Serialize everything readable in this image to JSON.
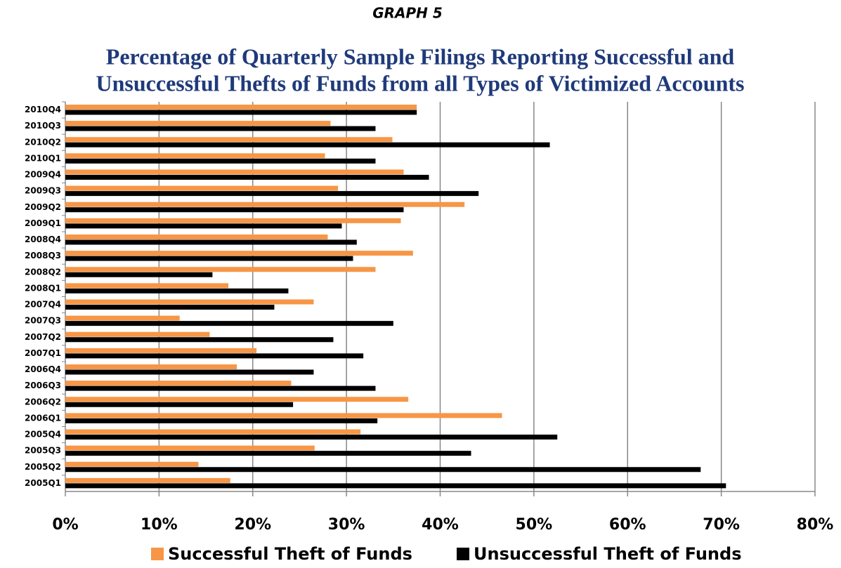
{
  "chart_data": {
    "type": "hbar",
    "pretitle": "GRAPH 5",
    "title": [
      "Percentage of Quarterly Sample Filings Reporting Successful and",
      "Unsuccessful Thefts of Funds from all Types of Victimized Accounts"
    ],
    "categories": [
      "2010Q4",
      "2010Q3",
      "2010Q2",
      "2010Q1",
      "2009Q4",
      "2009Q3",
      "2009Q2",
      "2009Q1",
      "2008Q4",
      "2008Q3",
      "2008Q2",
      "2008Q1",
      "2007Q4",
      "2007Q3",
      "2007Q2",
      "2007Q1",
      "2006Q4",
      "2006Q3",
      "2006Q2",
      "2006Q1",
      "2005Q4",
      "2005Q3",
      "2005Q2",
      "2005Q1"
    ],
    "series": [
      {
        "name": "Successful Theft of Funds",
        "color": "#f79646",
        "values": [
          37.5,
          28.3,
          34.9,
          27.7,
          36.1,
          29.1,
          42.6,
          35.8,
          28.0,
          37.1,
          33.1,
          17.4,
          26.5,
          12.2,
          15.4,
          20.4,
          18.3,
          24.1,
          36.6,
          46.6,
          31.5,
          26.6,
          14.2,
          17.6
        ]
      },
      {
        "name": "Unsuccessful Theft of Funds",
        "color": "#000000",
        "values": [
          37.5,
          33.1,
          51.7,
          33.1,
          38.8,
          44.1,
          36.1,
          29.5,
          31.1,
          30.7,
          15.7,
          23.8,
          22.3,
          35.0,
          28.6,
          31.8,
          26.5,
          33.1,
          24.3,
          33.3,
          52.5,
          43.3,
          67.8,
          70.5
        ]
      }
    ],
    "xlim": [
      0,
      80
    ],
    "xticks": [
      {
        "value": 0,
        "label": "0%"
      },
      {
        "value": 10,
        "label": "10%"
      },
      {
        "value": 20,
        "label": "20%"
      },
      {
        "value": 30,
        "label": "30%"
      },
      {
        "value": 40,
        "label": "40%"
      },
      {
        "value": 50,
        "label": "50%"
      },
      {
        "value": 60,
        "label": "60%"
      },
      {
        "value": 70,
        "label": "70%"
      },
      {
        "value": 80,
        "label": "80%"
      }
    ],
    "grid": true
  }
}
